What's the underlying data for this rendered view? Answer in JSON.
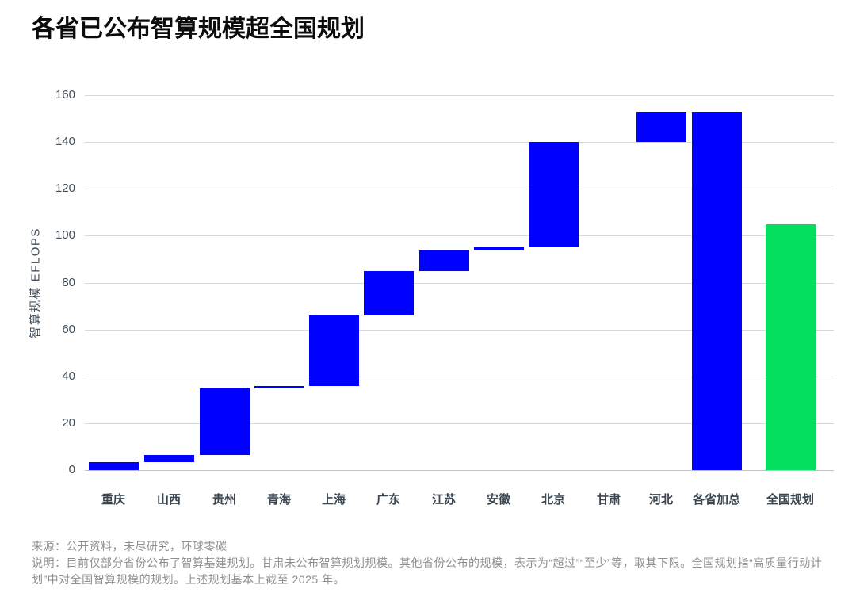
{
  "title": "各省已公布智算规模超全国规划",
  "chart_data": {
    "type": "bar",
    "subtype": "waterfall",
    "title": "各省已公布智算规模超全国规划",
    "xlabel": "",
    "ylabel": "智算规模 EFLOPS",
    "ylim": [
      0,
      160
    ],
    "ytick_step": 20,
    "grid": true,
    "legend": "none",
    "colors": {
      "province": "#0000ff",
      "national": "#05df60"
    },
    "categories": [
      {
        "key": "chongqing",
        "label": "重庆",
        "start": 0,
        "end": 3.5,
        "value": 3.5,
        "color": "province"
      },
      {
        "key": "shanxi",
        "label": "山西",
        "start": 3.5,
        "end": 6.5,
        "value": 3,
        "color": "province"
      },
      {
        "key": "guizhou",
        "label": "贵州",
        "start": 6.5,
        "end": 35,
        "value": 28.5,
        "color": "province"
      },
      {
        "key": "qinghai",
        "label": "青海",
        "start": 35,
        "end": 35.7,
        "value": 0.7,
        "color": "province"
      },
      {
        "key": "shanghai",
        "label": "上海",
        "start": 35.7,
        "end": 66,
        "value": 30.3,
        "color": "province"
      },
      {
        "key": "guangdong",
        "label": "广东",
        "start": 66,
        "end": 85,
        "value": 19,
        "color": "province"
      },
      {
        "key": "jiangsu",
        "label": "江苏",
        "start": 85,
        "end": 93.7,
        "value": 8.7,
        "color": "province"
      },
      {
        "key": "anhui",
        "label": "安徽",
        "start": 93.7,
        "end": 95,
        "value": 1.3,
        "color": "province"
      },
      {
        "key": "beijing",
        "label": "北京",
        "start": 95,
        "end": 140,
        "value": 45,
        "color": "province"
      },
      {
        "key": "gansu",
        "label": "甘肃",
        "start": null,
        "end": null,
        "value": null,
        "color": "province"
      },
      {
        "key": "hebei",
        "label": "河北",
        "start": 140,
        "end": 153,
        "value": 13,
        "color": "province"
      },
      {
        "key": "provinces-total",
        "label": "各省加总",
        "start": 0,
        "end": 153,
        "value": 153,
        "color": "province"
      },
      {
        "key": "national-plan",
        "label": "全国规划",
        "start": 0,
        "end": 105,
        "value": 105,
        "color": "national"
      }
    ]
  },
  "footer": {
    "source": "来源：公开资料，未尽研究，环球零碳",
    "note": "说明：目前仅部分省份公布了智算基建规划。甘肃未公布智算规划规模。其他省份公布的规模，表示为“超过”“至少”等，取其下限。全国规划指“高质量行动计划”中对全国智算规模的规划。上述规划基本上截至 2025 年。"
  }
}
